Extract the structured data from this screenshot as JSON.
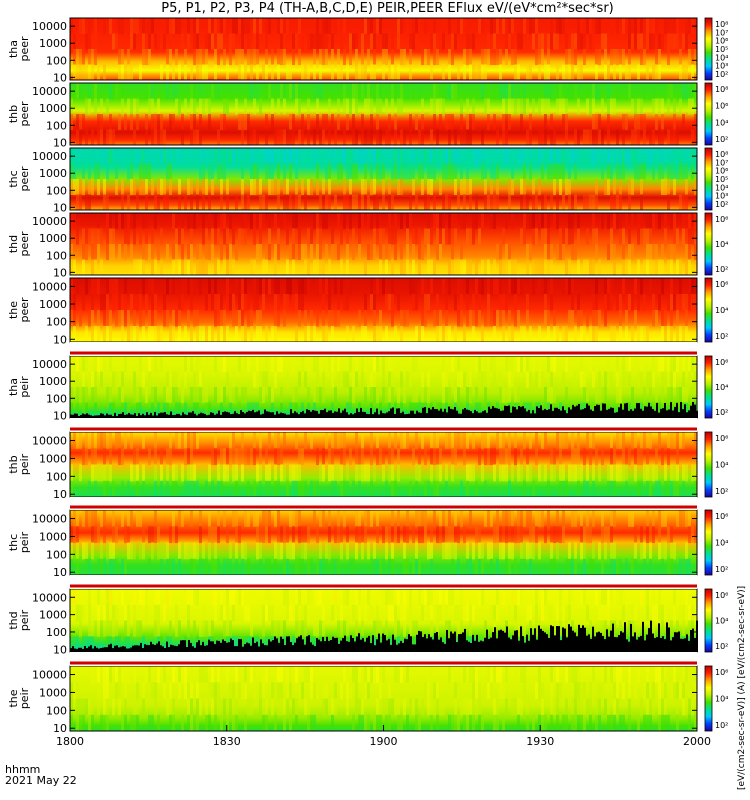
{
  "title": "P5, P1, P2, P3, P4 (TH-A,B,C,D,E) PEIR,PEER EFlux eV/(eV*cm²*sec*sr)",
  "colorbar_label": "[eV/(cm2-sec-sr-eV)] (A) [eV/(cm2-sec-sr-eV)]",
  "footer": {
    "time_format": "hhmm",
    "date": "2021 May 22"
  },
  "chart_data": {
    "type": "heatmap",
    "title": "P5, P1, P2, P3, P4 (TH-A,B,C,D,E) PEIR,PEER EFlux eV/(eV*cm²*sec*sr)",
    "x": {
      "label": "hhmm",
      "range": [
        "18:00",
        "20:00"
      ],
      "tick_labels": [
        "1800",
        "1830",
        "1900",
        "1930",
        "2000"
      ],
      "tick_values_minutes": [
        0,
        30,
        60,
        90,
        120
      ]
    },
    "y_axis_scale": "log",
    "y_ticks": [
      "10000",
      "1000",
      "100",
      "10"
    ],
    "y_tick_values": [
      10000,
      1000,
      100,
      10
    ],
    "y_range": [
      7,
      30000
    ],
    "colorbar": {
      "scale": "log",
      "colors": [
        "#2000a0",
        "#0040ff",
        "#00c8ff",
        "#00e090",
        "#40e000",
        "#c0f000",
        "#ffff00",
        "#ffa000",
        "#ff2000",
        "#c00000"
      ],
      "tick_values": [
        100,
        10000,
        1000000,
        100000000
      ],
      "tick_labels": [
        "10²",
        "10⁴",
        "10⁶",
        "10⁸"
      ]
    },
    "panels": [
      {
        "probe": "tha",
        "product": "peer",
        "ylabel": "tha peer",
        "cbar_ticks": [
          "10⁸",
          "10⁷",
          "10⁶",
          "10⁵",
          "10⁴",
          "10³",
          "10²"
        ]
      },
      {
        "probe": "thb",
        "product": "peer",
        "ylabel": "thb peer",
        "cbar_ticks": [
          "10⁸",
          "10⁶",
          "10⁴",
          "10²"
        ]
      },
      {
        "probe": "thc",
        "product": "peer",
        "ylabel": "thc peer",
        "cbar_ticks": [
          "10⁸",
          "10⁷",
          "10⁶",
          "10⁵",
          "10⁴",
          "10³",
          "10²"
        ]
      },
      {
        "probe": "thd",
        "product": "peer",
        "ylabel": "thd peer",
        "cbar_ticks": [
          "10⁶",
          "10⁴",
          "10²"
        ]
      },
      {
        "probe": "the",
        "product": "peer",
        "ylabel": "the peer",
        "cbar_ticks": [
          "10⁶",
          "10⁴",
          "10²"
        ]
      },
      {
        "probe": "tha",
        "product": "peir",
        "ylabel": "tha peir",
        "cbar_ticks": [
          "10⁶",
          "10⁴",
          "10²"
        ]
      },
      {
        "probe": "thb",
        "product": "peir",
        "ylabel": "thb peir",
        "cbar_ticks": [
          "10⁶",
          "10⁴",
          "10²"
        ]
      },
      {
        "probe": "thc",
        "product": "peir",
        "ylabel": "thc peir",
        "cbar_ticks": [
          "10⁶",
          "10⁴",
          "10²"
        ]
      },
      {
        "probe": "thd",
        "product": "peir",
        "ylabel": "thd peir",
        "cbar_ticks": [
          "10⁶",
          "10⁴",
          "10²"
        ]
      },
      {
        "probe": "the",
        "product": "peir",
        "ylabel": "the peir",
        "cbar_ticks": [
          "10⁶",
          "10⁴",
          "10²"
        ]
      }
    ]
  }
}
